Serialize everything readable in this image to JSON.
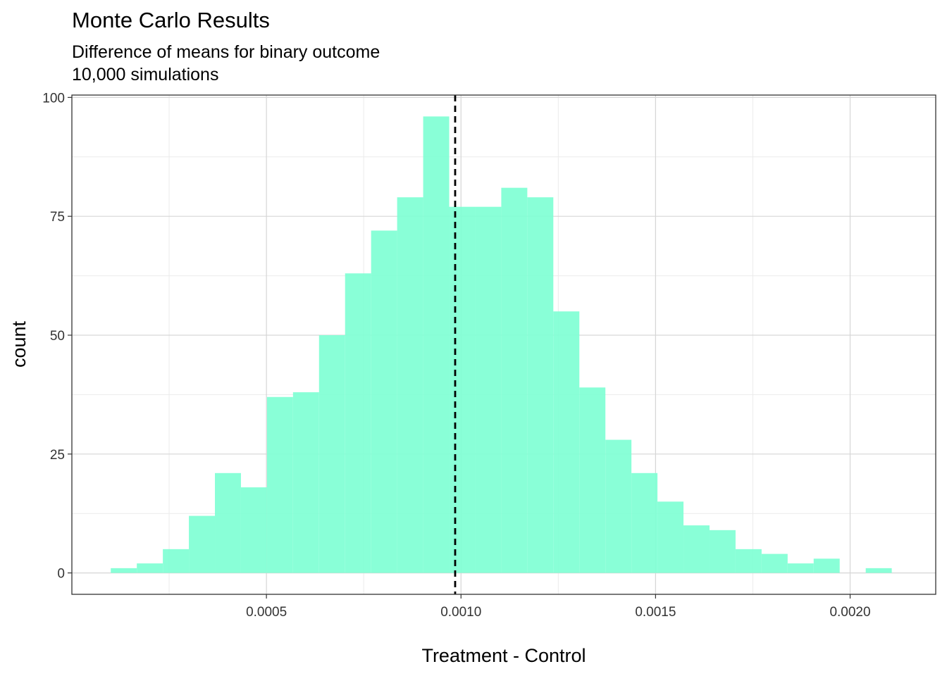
{
  "chart_data": {
    "type": "bar",
    "title": "Monte Carlo Results",
    "subtitle_lines": [
      "Difference of means for binary outcome",
      "10,000 simulations"
    ],
    "xlabel": "Treatment - Control",
    "ylabel": "count",
    "xlim": [
      0.0,
      0.00222
    ],
    "ylim": [
      -4.5,
      100.5
    ],
    "x_ticks": [
      0.0005,
      0.001,
      0.0015,
      0.002
    ],
    "x_tick_labels": [
      "0.0005",
      "0.0010",
      "0.0015",
      "0.0020"
    ],
    "y_ticks": [
      0,
      25,
      50,
      75,
      100
    ],
    "y_tick_labels": [
      "0",
      "25",
      "50",
      "75",
      "100"
    ],
    "bin_width": 6.69e-05,
    "bin_start": 0.0001,
    "values": [
      1,
      2,
      5,
      12,
      21,
      18,
      37,
      38,
      50,
      63,
      72,
      79,
      96,
      77,
      77,
      81,
      79,
      55,
      39,
      28,
      21,
      15,
      10,
      9,
      5,
      4,
      2,
      3,
      0,
      1
    ],
    "reference_line": {
      "x": 0.000985,
      "style": "dashed",
      "color": "#000000"
    },
    "bar_color": "#7FFFD4",
    "grid": true,
    "legend": "none"
  }
}
